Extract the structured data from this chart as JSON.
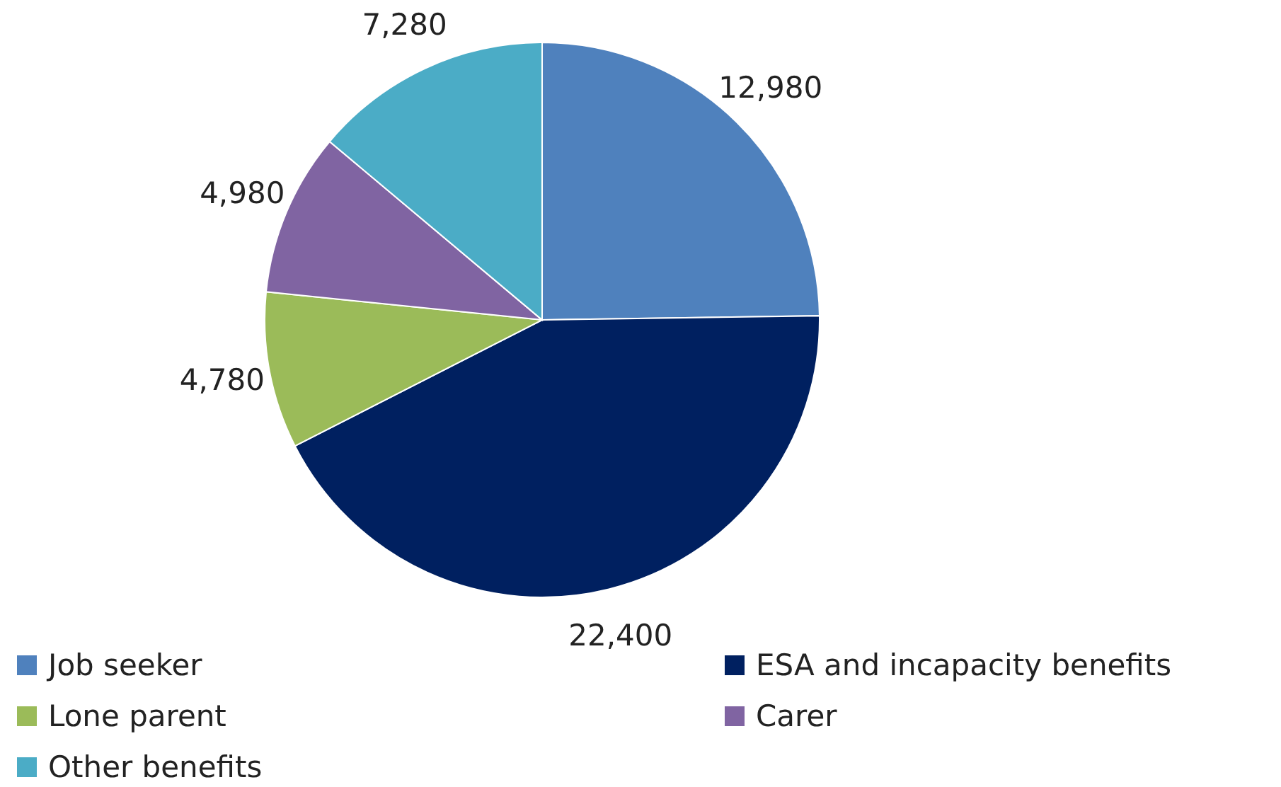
{
  "chart_data": {
    "type": "pie",
    "categories": [
      "Job seeker",
      "ESA and incapacity benefits",
      "Lone parent",
      "Carer",
      "Other benefits"
    ],
    "values": [
      12980,
      22400,
      4780,
      4980,
      7280
    ],
    "value_labels": [
      "12,980",
      "22,400",
      "4,780",
      "4,980",
      "7,280"
    ],
    "colors": [
      "#4f81bd",
      "#002060",
      "#9bbb59",
      "#8064a2",
      "#4bacc6"
    ],
    "legend": "bottom"
  }
}
